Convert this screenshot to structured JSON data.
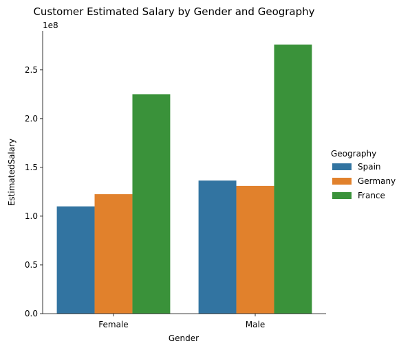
{
  "chart_data": {
    "type": "bar",
    "title": "Customer Estimated Salary by Gender and Geography",
    "xlabel": "Gender",
    "ylabel": "EstimatedSalary",
    "y_offset_label": "1e8",
    "categories": [
      "Female",
      "Male"
    ],
    "ylim": [
      0,
      2.9
    ],
    "yticks": [
      0.0,
      0.5,
      1.0,
      1.5,
      2.0,
      2.5
    ],
    "ytick_labels": [
      "0.0",
      "0.5",
      "1.0",
      "1.5",
      "2.0",
      "2.5"
    ],
    "grid": false,
    "legend": {
      "title": "Geography",
      "placement": "right"
    },
    "series": [
      {
        "name": "Spain",
        "color": "#3274a1",
        "values": [
          1.1,
          1.365
        ]
      },
      {
        "name": "Germany",
        "color": "#e1812c",
        "values": [
          1.225,
          1.31
        ]
      },
      {
        "name": "France",
        "color": "#3a923a",
        "values": [
          2.25,
          2.76
        ]
      }
    ]
  }
}
